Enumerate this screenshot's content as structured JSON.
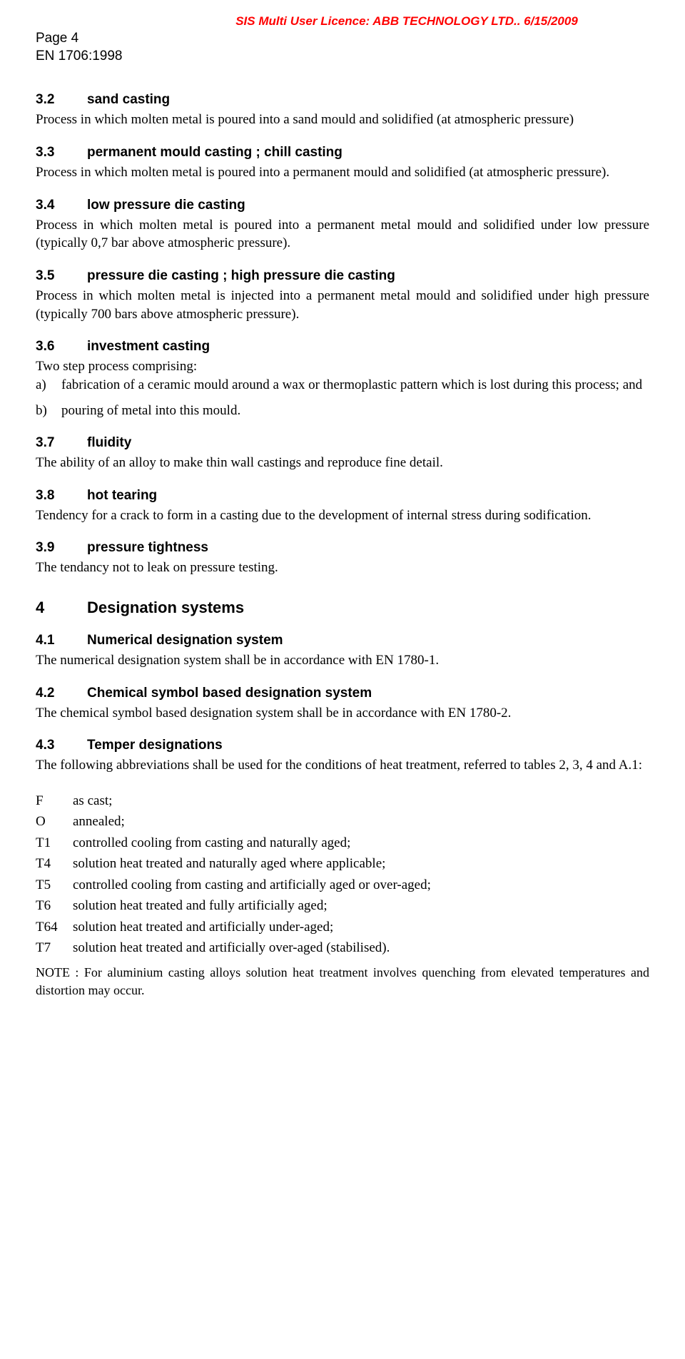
{
  "header": {
    "license_text": "SIS Multi User Licence: ABB TECHNOLOGY LTD.. 6/15/2009",
    "page_label": "Page 4",
    "standard_label": "EN 1706:1998"
  },
  "sections": [
    {
      "num": "3.2",
      "title": "sand casting",
      "body": "Process in which molten metal is poured into a sand mould and solidified (at atmospheric pressure)"
    },
    {
      "num": "3.3",
      "title": "permanent mould casting ; chill casting",
      "body": "Process in which molten metal is poured into a permanent mould and solidified (at atmospheric pressure)."
    },
    {
      "num": "3.4",
      "title": "low pressure die casting",
      "body": "Process in which molten metal is poured into a permanent metal mould and solidified under low pressure (typically 0,7 bar above atmospheric pressure)."
    },
    {
      "num": "3.5",
      "title": "pressure die casting ; high pressure die casting",
      "body": "Process in which molten metal is injected into a permanent metal mould and solidified under high pressure (typically 700 bars above atmospheric pressure)."
    },
    {
      "num": "3.6",
      "title": "investment casting",
      "body": "Two step process comprising:",
      "list": [
        {
          "marker": "a)",
          "text": "fabrication of a ceramic mould around a wax or thermoplastic pattern which is lost during this process; and"
        },
        {
          "marker": "b)",
          "text": "pouring of metal into this mould."
        }
      ]
    },
    {
      "num": "3.7",
      "title": "fluidity",
      "body": "The ability of an alloy to make thin wall castings and reproduce fine detail."
    },
    {
      "num": "3.8",
      "title": "hot tearing",
      "body": "Tendency for a crack to form in a casting due to the development of internal stress during sodification."
    },
    {
      "num": "3.9",
      "title": "pressure tightness",
      "body": "The tendancy not to leak on pressure testing."
    }
  ],
  "chapter": {
    "num": "4",
    "title": "Designation systems"
  },
  "subsections": [
    {
      "num": "4.1",
      "title": "Numerical designation system",
      "body": "The numerical designation system shall be in accordance with EN 1780-1."
    },
    {
      "num": "4.2",
      "title": "Chemical symbol based designation system",
      "body": "The chemical symbol based designation system shall be in accordance with EN 1780-2."
    },
    {
      "num": "4.3",
      "title": "Temper designations",
      "body": "The following abbreviations shall be used for the conditions of heat treatment, referred to tables 2, 3, 4 and A.1:"
    }
  ],
  "tempers": [
    {
      "code": "F",
      "desc": "as cast;"
    },
    {
      "code": "O",
      "desc": "annealed;"
    },
    {
      "code": "T1",
      "desc": "controlled cooling from casting and naturally aged;"
    },
    {
      "code": "T4",
      "desc": "solution heat treated and naturally aged where applicable;"
    },
    {
      "code": "T5",
      "desc": "controlled cooling from casting and artificially aged or over-aged;"
    },
    {
      "code": "T6",
      "desc": "solution heat treated and fully artificially aged;"
    },
    {
      "code": "T64",
      "desc": "solution heat treated and artificially under-aged;"
    },
    {
      "code": "T7",
      "desc": "solution heat treated and artificially over-aged (stabilised)."
    }
  ],
  "note_text": "NOTE : For aluminium casting alloys solution heat treatment involves quenching from elevated temperatures and distortion may occur."
}
